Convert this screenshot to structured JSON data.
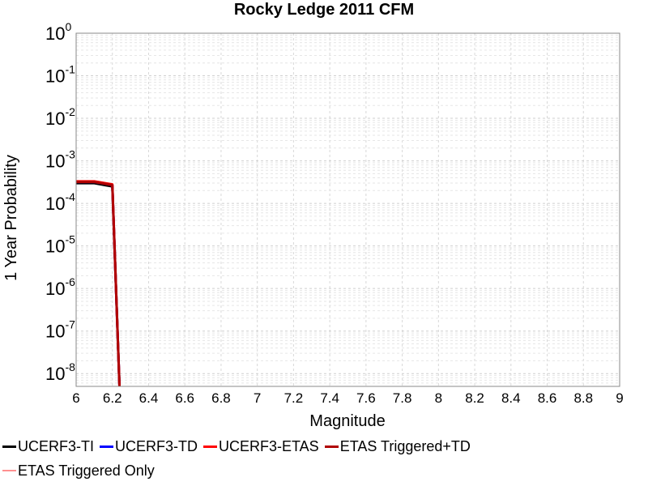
{
  "chart_data": {
    "type": "line",
    "title": "Rocky Ledge 2011 CFM",
    "xlabel": "Magnitude",
    "ylabel": "1 Year Probability",
    "xlim": [
      6,
      9
    ],
    "ylim_exponents": [
      -8.3,
      0
    ],
    "log_y": true,
    "grid": true,
    "x_ticks": [
      "6",
      "6.2",
      "6.4",
      "6.6",
      "6.8",
      "7",
      "7.2",
      "7.4",
      "7.6",
      "7.8",
      "8",
      "8.2",
      "8.4",
      "8.6",
      "8.8",
      "9"
    ],
    "y_ticks": [
      {
        "base": "10",
        "exp": "0"
      },
      {
        "base": "10",
        "exp": "-1"
      },
      {
        "base": "10",
        "exp": "-2"
      },
      {
        "base": "10",
        "exp": "-3"
      },
      {
        "base": "10",
        "exp": "-4"
      },
      {
        "base": "10",
        "exp": "-5"
      },
      {
        "base": "10",
        "exp": "-6"
      },
      {
        "base": "10",
        "exp": "-7"
      },
      {
        "base": "10",
        "exp": "-8"
      }
    ],
    "legend_placement": "bottom",
    "series": [
      {
        "name": "UCERF3-TI",
        "color": "#000000",
        "x": [
          6.0,
          6.1,
          6.2,
          6.24
        ],
        "y": [
          0.0003,
          0.0003,
          0.00025,
          4e-09
        ]
      },
      {
        "name": "UCERF3-TD",
        "color": "#0000ff",
        "x": [
          6.0,
          6.1,
          6.2,
          6.24
        ],
        "y": [
          0.00032,
          0.00032,
          0.00027,
          4e-09
        ]
      },
      {
        "name": "UCERF3-ETAS",
        "color": "#ff0000",
        "x": [
          6.0,
          6.1,
          6.2,
          6.24
        ],
        "y": [
          0.00033,
          0.00033,
          0.00028,
          4e-09
        ]
      },
      {
        "name": "ETAS Triggered+TD",
        "color": "#b00000",
        "x": [
          6.0,
          6.1,
          6.2,
          6.24
        ],
        "y": [
          0.00032,
          0.00032,
          0.00027,
          4e-09
        ]
      },
      {
        "name": "ETAS Triggered Only",
        "color": "#ff9090",
        "x": [],
        "y": []
      }
    ]
  }
}
